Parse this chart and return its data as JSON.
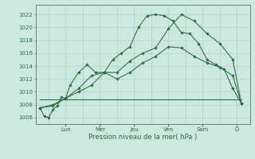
{
  "background_color": "#cce8e0",
  "grid_color": "#aaccC4",
  "line_color": "#2d6b3c",
  "xlabel": "Pression niveau de la mer( hPa )",
  "ylim": [
    1005.0,
    1023.5
  ],
  "yticks": [
    1006,
    1008,
    1010,
    1012,
    1014,
    1016,
    1018,
    1020,
    1022
  ],
  "x_day_labels": [
    "Lun",
    "Mer",
    "Jeu",
    "Ven",
    "Sam",
    "D"
  ],
  "x_day_positions": [
    3.5,
    7.5,
    11.5,
    15.5,
    19.5,
    23.5
  ],
  "xlim": [
    0,
    25
  ],
  "line1_x": [
    0.5,
    1,
    1.5,
    2,
    2.5,
    3,
    3.5,
    4,
    5,
    6,
    7,
    8,
    9,
    10,
    11,
    12,
    13,
    14,
    15,
    16,
    17,
    18,
    19,
    20,
    21,
    22,
    23,
    24
  ],
  "line1_y": [
    1007.5,
    1006.2,
    1006.0,
    1007.2,
    1007.8,
    1009.2,
    1009.0,
    1011.0,
    1013.0,
    1014.2,
    1013.0,
    1013.0,
    1015.0,
    1016.0,
    1017.0,
    1020.0,
    1021.8,
    1022.0,
    1021.8,
    1021.0,
    1019.2,
    1019.0,
    1017.5,
    1015.0,
    1014.2,
    1013.5,
    1010.5,
    1008.2
  ],
  "line2_x": [
    0.5,
    2,
    3.5,
    5,
    6.5,
    8,
    9.5,
    11,
    12.5,
    14,
    15.5,
    17,
    18.5,
    20,
    21.5,
    23,
    24
  ],
  "line2_y": [
    1007.5,
    1008.0,
    1009.0,
    1010.5,
    1012.5,
    1013.0,
    1013.0,
    1014.8,
    1016.0,
    1016.8,
    1019.8,
    1022.0,
    1021.0,
    1019.0,
    1017.5,
    1015.0,
    1008.2
  ],
  "line3_x": [
    0.5,
    2,
    3.5,
    5,
    6.5,
    8,
    9.5,
    11,
    12.5,
    14,
    15.5,
    17,
    18.5,
    20,
    21.5,
    23,
    24
  ],
  "line3_y": [
    1007.5,
    1007.8,
    1009.0,
    1010.0,
    1011.0,
    1013.0,
    1012.0,
    1013.0,
    1014.5,
    1015.5,
    1017.0,
    1016.8,
    1015.5,
    1014.5,
    1013.8,
    1012.5,
    1008.2
  ],
  "line4_x": [
    0.5,
    24
  ],
  "line4_y": [
    1008.8,
    1008.8
  ],
  "marker_style": "D",
  "marker_size": 1.8,
  "linewidth": 0.75
}
